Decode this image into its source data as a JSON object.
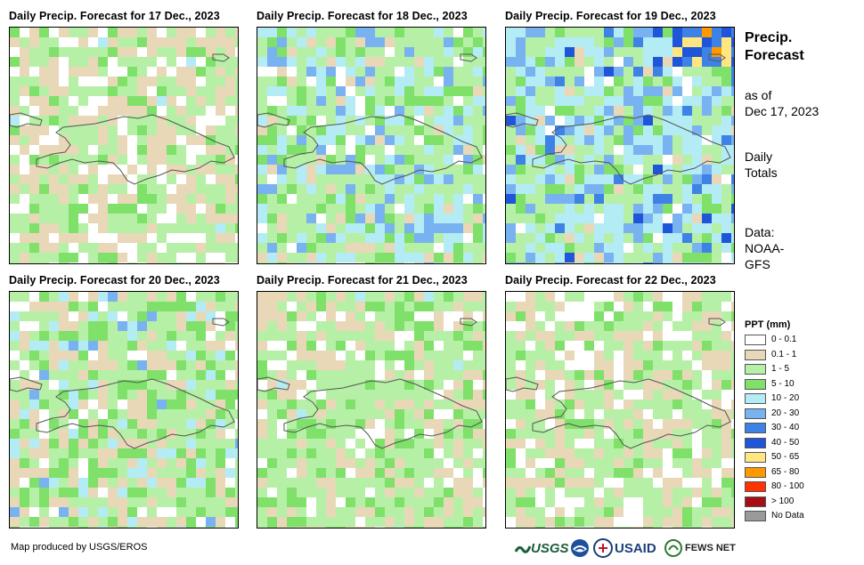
{
  "panels": [
    {
      "title": "Daily Precip. Forecast for 17 Dec., 2023",
      "seed": 17
    },
    {
      "title": "Daily Precip. Forecast for 18 Dec., 2023",
      "seed": 18
    },
    {
      "title": "Daily Precip. Forecast for 19 Dec., 2023",
      "seed": 19
    },
    {
      "title": "Daily Precip. Forecast for 20 Dec., 2023",
      "seed": 20
    },
    {
      "title": "Daily Precip. Forecast for 21 Dec., 2023",
      "seed": 21
    },
    {
      "title": "Daily Precip. Forecast for 22 Dec., 2023",
      "seed": 22
    }
  ],
  "side": {
    "title_line1": "Precip.",
    "title_line2": "Forecast",
    "as_of_line1": "as of",
    "as_of_line2": "Dec 17, 2023",
    "daily_line1": "Daily",
    "daily_line2": "Totals",
    "data_line1": "Data:",
    "data_line2": "NOAA-",
    "data_line3": "GFS"
  },
  "legend": {
    "title": "PPT (mm)",
    "items": [
      {
        "label": "0 - 0.1",
        "color": "#ffffff"
      },
      {
        "label": "0.1 - 1",
        "color": "#e9d8b8"
      },
      {
        "label": "1 - 5",
        "color": "#b6f0a6"
      },
      {
        "label": "5 - 10",
        "color": "#7fe06a"
      },
      {
        "label": "10 - 20",
        "color": "#b3ecf4"
      },
      {
        "label": "20 - 30",
        "color": "#79b2f0"
      },
      {
        "label": "30 - 40",
        "color": "#3f82e6"
      },
      {
        "label": "40 - 50",
        "color": "#1f55d8"
      },
      {
        "label": "50 - 65",
        "color": "#ffe680"
      },
      {
        "label": "65 - 80",
        "color": "#ff9900"
      },
      {
        "label": "80 - 100",
        "color": "#ff3300"
      },
      {
        "label": "> 100",
        "color": "#a50f15"
      },
      {
        "label": "No Data",
        "color": "#9a9a9a"
      }
    ]
  },
  "credit": "Map produced by USGS/EROS",
  "logos": {
    "usgs": "USGS",
    "usaid": "USAID",
    "fews": "FEWS NET"
  }
}
